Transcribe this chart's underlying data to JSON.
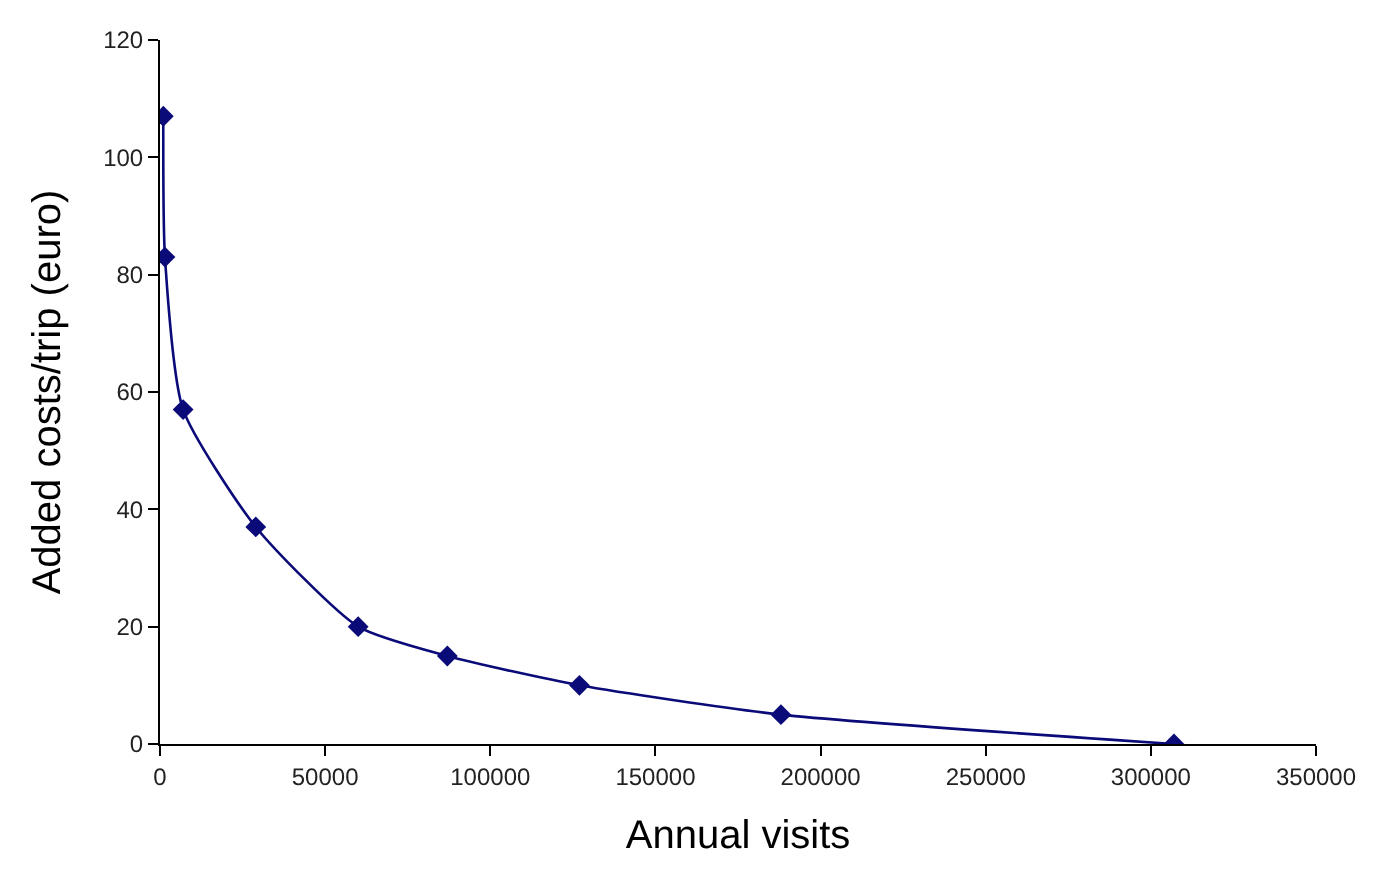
{
  "chart_data": {
    "type": "line",
    "xlabel": "Annual visits",
    "ylabel": "Added costs/trip (euro)",
    "x": [
      1000,
      1500,
      7000,
      29000,
      60000,
      87000,
      127000,
      188000,
      307000
    ],
    "series": [
      {
        "color": "#0a0a78",
        "values": [
          107,
          83,
          57,
          37,
          20,
          15,
          10,
          5,
          0
        ]
      }
    ],
    "xlim": [
      0,
      350000
    ],
    "xticks": [
      0,
      50000,
      100000,
      150000,
      200000,
      250000,
      300000,
      350000
    ],
    "ylim": [
      0,
      120
    ],
    "yticks": [
      0,
      20,
      40,
      60,
      80,
      100,
      120
    ],
    "legend": false,
    "marker": "diamond",
    "line_style": "solid"
  }
}
